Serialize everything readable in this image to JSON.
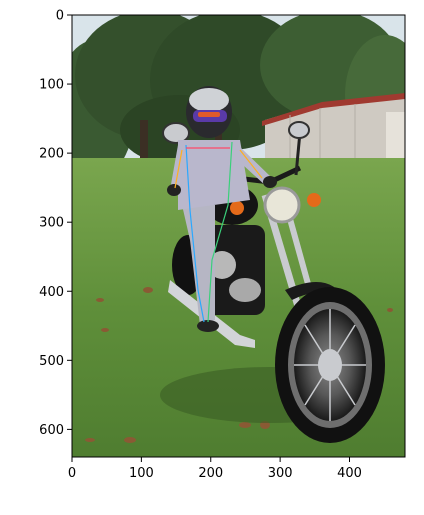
{
  "figure": {
    "axes": {
      "x": {
        "ticks": [
          0,
          100,
          200,
          300,
          400
        ],
        "range": [
          0,
          480
        ]
      },
      "y": {
        "ticks": [
          0,
          100,
          200,
          300,
          400,
          500,
          600
        ],
        "range": [
          640,
          0
        ],
        "inverted": true
      }
    },
    "photo": {
      "subject": "person-wearing-helmet-on-motorcycle",
      "scene": "grass-lawn-with-trees-and-metal-shed",
      "colors": {
        "sky": "#d9e4ea",
        "trees": "#34502c",
        "grass": "#5f8f3a",
        "shed": "#cfcac2",
        "shed_roof": "#a03a30",
        "bike_black": "#141414",
        "chrome": "#c9cbcf",
        "rider_top": "#b9b7cc",
        "helmet": "#2a2a2e",
        "visor": "#5a3aa8",
        "headlight": "#e8e6d8",
        "turn_signal": "#e46a1a"
      },
      "annotation_overlay": {
        "description": "thin-vertical-keypoint-lines-over-rider",
        "colors": [
          "#2aa8ff",
          "#3ad07a",
          "#ff4a6a",
          "#ffb020"
        ]
      }
    }
  }
}
